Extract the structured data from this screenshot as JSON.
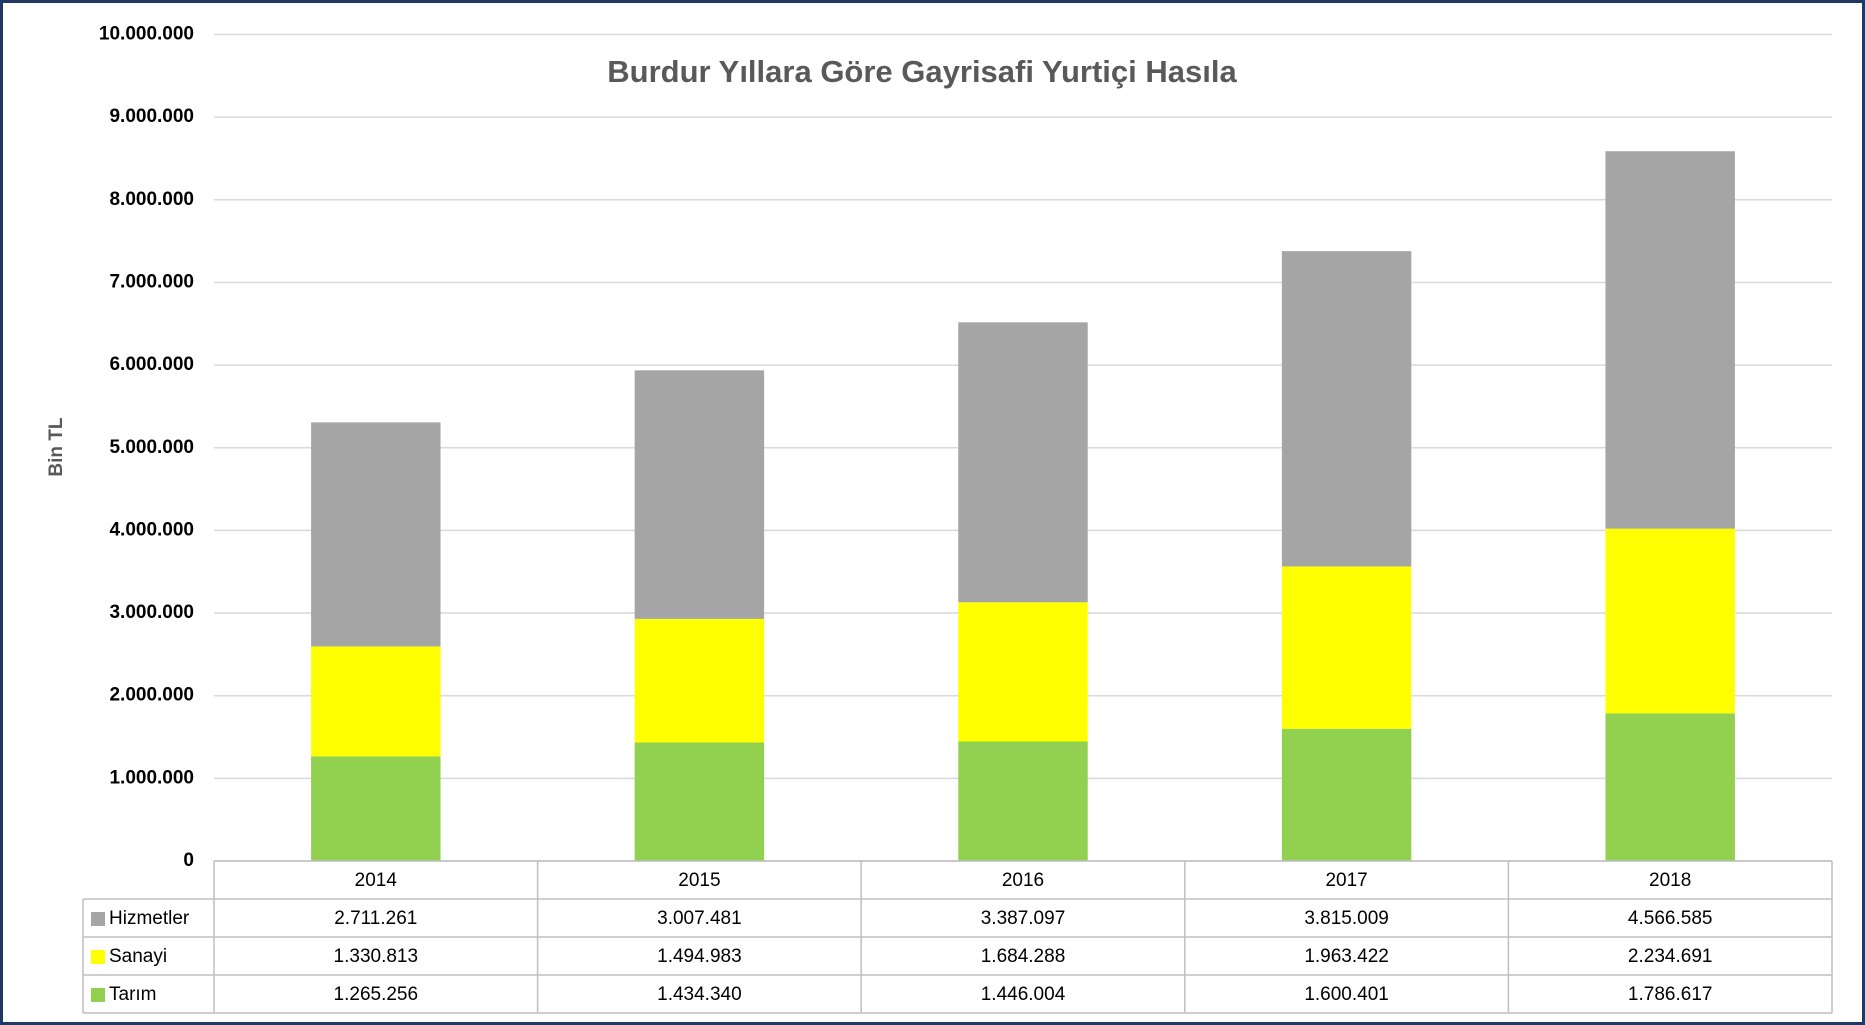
{
  "chart_data": {
    "type": "stacked_bar",
    "title": "Burdur Yıllara Göre Gayrisafi Yurtiçi Hasıla",
    "y_label": "Bin TL",
    "categories": [
      "2014",
      "2015",
      "2016",
      "2017",
      "2018"
    ],
    "series": [
      {
        "name": "Hizmetler",
        "color": "#a5a5a5",
        "values": [
          2711261,
          3007481,
          3387097,
          3815009,
          4566585
        ],
        "value_labels": [
          "2.711.261",
          "3.007.481",
          "3.387.097",
          "3.815.009",
          "4.566.585"
        ]
      },
      {
        "name": "Sanayi",
        "color": "#ffff00",
        "values": [
          1330813,
          1494983,
          1684288,
          1963422,
          2234691
        ],
        "value_labels": [
          "1.330.813",
          "1.494.983",
          "1.684.288",
          "1.963.422",
          "2.234.691"
        ]
      },
      {
        "name": "Tarım",
        "color": "#92d050",
        "values": [
          1265256,
          1434340,
          1446004,
          1600401,
          1786617
        ],
        "value_labels": [
          "1.265.256",
          "1.434.340",
          "1.446.004",
          "1.600.401",
          "1.786.617"
        ]
      }
    ],
    "ylim": [
      0,
      10000000
    ],
    "yticks": [
      0,
      {
        "value": 1000000,
        "label": "1.000.000"
      },
      {
        "value": 2000000,
        "label": "2.000.000"
      },
      {
        "value": 3000000,
        "label": "3.000.000"
      },
      {
        "value": 4000000,
        "label": "4.000.000"
      },
      {
        "value": 5000000,
        "label": "5.000.000"
      },
      {
        "value": 6000000,
        "label": "6.000.000"
      },
      {
        "value": 7000000,
        "label": "7.000.000"
      },
      {
        "value": 8000000,
        "label": "8.000.000"
      },
      {
        "value": 9000000,
        "label": "9.000.000"
      },
      {
        "value": 10000000,
        "label": "10.000.000"
      }
    ],
    "grid": true
  }
}
